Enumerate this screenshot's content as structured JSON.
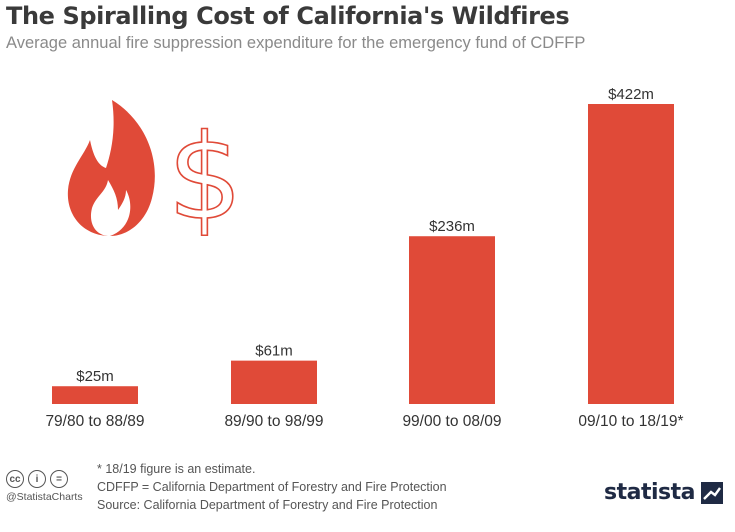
{
  "chart_data": {
    "type": "bar",
    "title": "The Spiralling Cost of California's Wildfires",
    "subtitle": "Average annual fire suppression expenditure for the emergency fund of CDFFP",
    "categories": [
      "79/80 to 88/89",
      "89/90 to 98/99",
      "99/00 to 08/09",
      "09/10 to 18/19*"
    ],
    "values": [
      25,
      61,
      236,
      422
    ],
    "value_labels": [
      "$25m",
      "$61m",
      "$236m",
      "$422m"
    ],
    "unit": "million USD",
    "bar_color": "#e04a38",
    "grid": false,
    "ylim": [
      0,
      422
    ]
  },
  "footer": {
    "note": "* 18/19 figure is an estimate.",
    "abbrev": "CDFFP = California Department of Forestry and Fire Protection",
    "source": "Source: California Department of Forestry and Fire Protection",
    "handle": "@StatistaCharts",
    "cc_icons": [
      "cc",
      "i",
      "="
    ]
  },
  "brand": {
    "logo_text": "statista",
    "icons": [
      "fire-icon",
      "dollar-icon",
      "creative-commons-icon",
      "attribution-icon",
      "no-derivatives-icon",
      "statista-logo-icon"
    ]
  }
}
